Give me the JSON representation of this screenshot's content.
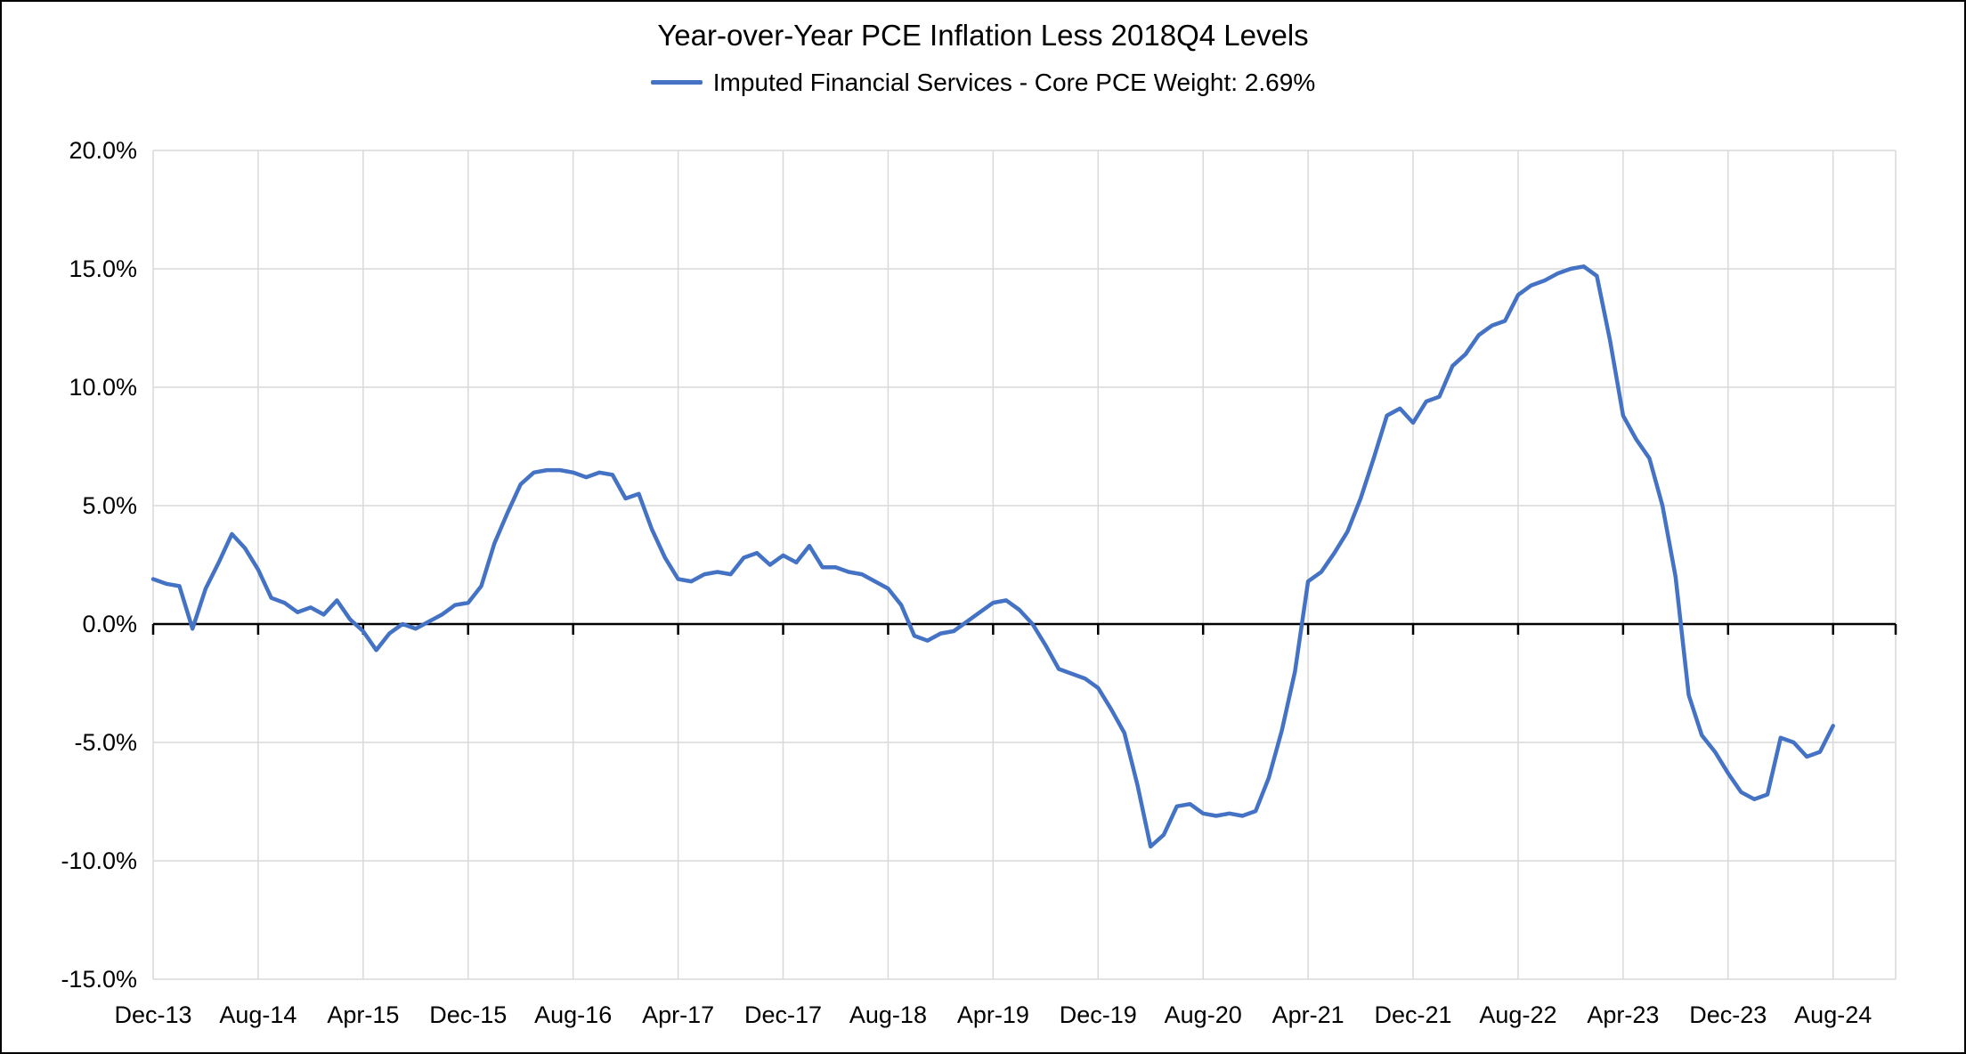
{
  "page": {
    "background_color": "#ffffff",
    "border_color": "#000000"
  },
  "chart_data": {
    "type": "line",
    "title": "Year-over-Year PCE Inflation Less 2018Q4 Levels",
    "legend_position": "top",
    "grid": true,
    "gridline_color": "#d9d9d9",
    "axis_color": "#000000",
    "axis_text_color": "#000000",
    "ylim": [
      -15,
      20
    ],
    "y_ticks": [
      20,
      15,
      10,
      5,
      0,
      -5,
      -10,
      -15
    ],
    "y_tick_labels": [
      "20.0%",
      "15.0%",
      "10.0%",
      "5.0%",
      "0.0%",
      "-5.0%",
      "-10.0%",
      "-15.0%"
    ],
    "x_tick_interval": 8,
    "x_tick_labels": [
      "Dec-13",
      "Aug-14",
      "Apr-15",
      "Dec-15",
      "Aug-16",
      "Apr-17",
      "Dec-17",
      "Aug-18",
      "Apr-19",
      "Dec-19",
      "Aug-20",
      "Apr-21",
      "Dec-21",
      "Aug-22",
      "Apr-23",
      "Dec-23",
      "Aug-24"
    ],
    "x": [
      "Dec-13",
      "Jan-14",
      "Feb-14",
      "Mar-14",
      "Apr-14",
      "May-14",
      "Jun-14",
      "Jul-14",
      "Aug-14",
      "Sep-14",
      "Oct-14",
      "Nov-14",
      "Dec-14",
      "Jan-15",
      "Feb-15",
      "Mar-15",
      "Apr-15",
      "May-15",
      "Jun-15",
      "Jul-15",
      "Aug-15",
      "Sep-15",
      "Oct-15",
      "Nov-15",
      "Dec-15",
      "Jan-16",
      "Feb-16",
      "Mar-16",
      "Apr-16",
      "May-16",
      "Jun-16",
      "Jul-16",
      "Aug-16",
      "Sep-16",
      "Oct-16",
      "Nov-16",
      "Dec-16",
      "Jan-17",
      "Feb-17",
      "Mar-17",
      "Apr-17",
      "May-17",
      "Jun-17",
      "Jul-17",
      "Aug-17",
      "Sep-17",
      "Oct-17",
      "Nov-17",
      "Dec-17",
      "Jan-18",
      "Feb-18",
      "Mar-18",
      "Apr-18",
      "May-18",
      "Jun-18",
      "Jul-18",
      "Aug-18",
      "Sep-18",
      "Oct-18",
      "Nov-18",
      "Dec-18",
      "Jan-19",
      "Feb-19",
      "Mar-19",
      "Apr-19",
      "May-19",
      "Jun-19",
      "Jul-19",
      "Aug-19",
      "Sep-19",
      "Oct-19",
      "Nov-19",
      "Dec-19",
      "Jan-20",
      "Feb-20",
      "Mar-20",
      "Apr-20",
      "May-20",
      "Jun-20",
      "Jul-20",
      "Aug-20",
      "Sep-20",
      "Oct-20",
      "Nov-20",
      "Dec-20",
      "Jan-21",
      "Feb-21",
      "Mar-21",
      "Apr-21",
      "May-21",
      "Jun-21",
      "Jul-21",
      "Aug-21",
      "Sep-21",
      "Oct-21",
      "Nov-21",
      "Dec-21",
      "Jan-22",
      "Feb-22",
      "Mar-22",
      "Apr-22",
      "May-22",
      "Jun-22",
      "Jul-22",
      "Aug-22",
      "Sep-22",
      "Oct-22",
      "Nov-22",
      "Dec-22",
      "Jan-23",
      "Feb-23",
      "Mar-23",
      "Apr-23",
      "May-23",
      "Jun-23",
      "Jul-23",
      "Aug-23",
      "Sep-23",
      "Oct-23",
      "Nov-23",
      "Dec-23",
      "Jan-24",
      "Feb-24",
      "Mar-24",
      "Apr-24",
      "May-24",
      "Jun-24",
      "Jul-24",
      "Aug-24"
    ],
    "series": [
      {
        "name": "Imputed Financial Services - Core PCE Weight: 2.69%",
        "color": "#4472C4",
        "values": [
          1.9,
          1.7,
          1.6,
          -0.2,
          1.5,
          2.6,
          3.8,
          3.2,
          2.3,
          1.1,
          0.9,
          0.5,
          0.7,
          0.4,
          1.0,
          0.2,
          -0.3,
          -1.1,
          -0.4,
          0.0,
          -0.2,
          0.1,
          0.4,
          0.8,
          0.9,
          1.6,
          3.4,
          4.7,
          5.9,
          6.4,
          6.5,
          6.5,
          6.4,
          6.2,
          6.4,
          6.3,
          5.3,
          5.5,
          4.0,
          2.8,
          1.9,
          1.8,
          2.1,
          2.2,
          2.1,
          2.8,
          3.0,
          2.5,
          2.9,
          2.6,
          3.3,
          2.4,
          2.4,
          2.2,
          2.1,
          1.8,
          1.5,
          0.8,
          -0.5,
          -0.7,
          -0.4,
          -0.3,
          0.1,
          0.5,
          0.9,
          1.0,
          0.6,
          0.0,
          -0.9,
          -1.9,
          -2.1,
          -2.3,
          -2.7,
          -3.6,
          -4.6,
          -6.8,
          -9.4,
          -8.9,
          -7.7,
          -7.6,
          -8.0,
          -8.1,
          -8.0,
          -8.1,
          -7.9,
          -6.5,
          -4.5,
          -2.0,
          1.8,
          2.2,
          3.0,
          3.9,
          5.3,
          7.0,
          8.8,
          9.1,
          8.5,
          9.4,
          9.6,
          10.9,
          11.4,
          12.2,
          12.6,
          12.8,
          13.9,
          14.3,
          14.5,
          14.8,
          15.0,
          15.1,
          14.7,
          12.0,
          8.8,
          7.8,
          7.0,
          5.0,
          2.0,
          -3.0,
          -4.7,
          -5.4,
          -6.3,
          -7.1,
          -7.4,
          -7.2,
          -4.8,
          -5.0,
          -5.6,
          -5.4,
          -4.3
        ]
      }
    ]
  }
}
